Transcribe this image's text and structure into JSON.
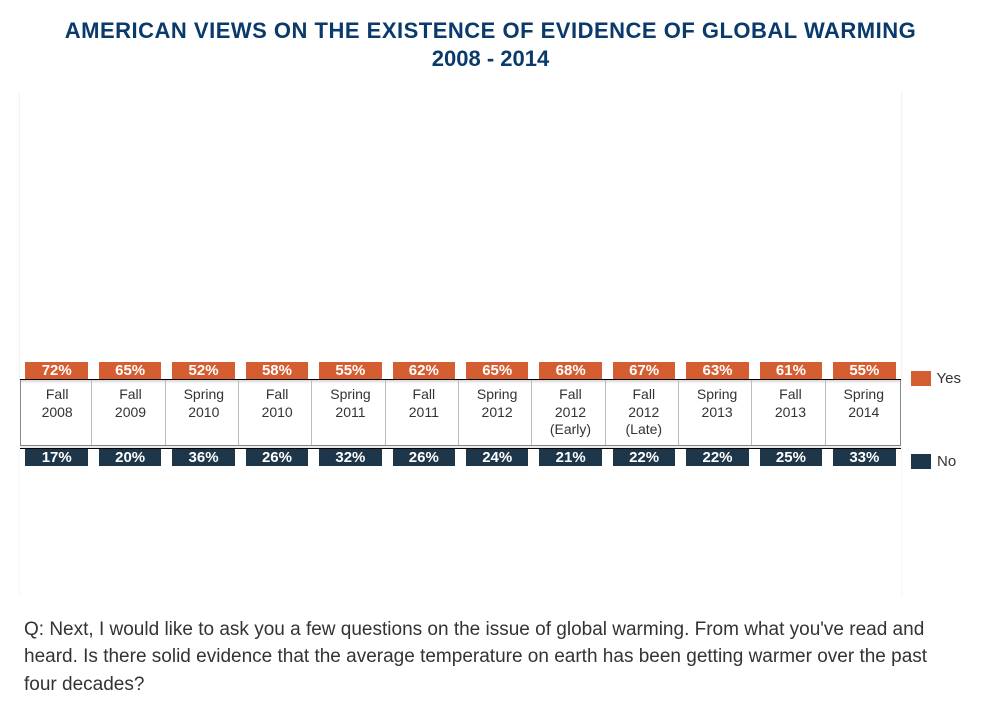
{
  "title_line1": "AMERICAN VIEWS ON THE EXISTENCE OF EVIDENCE OF GLOBAL WARMING",
  "title_line2": "2008 - 2014",
  "chart": {
    "type": "bar",
    "yes_color": "#d55d32",
    "no_color": "#1d3649",
    "text_color": "#ffffff",
    "axis_text_color": "#333333",
    "title_color": "#0a3a6b",
    "background_color": "#ffffff",
    "upper_max": 75,
    "lower_max": 40,
    "categories": [
      "Fall 2008",
      "Fall 2009",
      "Spring 2010",
      "Fall 2010",
      "Spring 2011",
      "Fall 2011",
      "Spring 2012",
      "Fall 2012 (Early)",
      "Fall 2012 (Late)",
      "Spring 2013",
      "Fall 2013",
      "Spring 2014"
    ],
    "yes_values": [
      72,
      65,
      52,
      58,
      55,
      62,
      65,
      68,
      67,
      63,
      61,
      55
    ],
    "no_values": [
      17,
      20,
      36,
      26,
      32,
      26,
      24,
      21,
      22,
      22,
      25,
      33
    ],
    "label_fontsize": 14,
    "value_fontsize": 15
  },
  "legend": {
    "yes": "Yes",
    "no": "No"
  },
  "question": "Q:  Next, I would like to ask you a few questions on the issue of global warming.  From what you've read and heard. Is there solid evidence that the average temperature on earth has been getting warmer over the past four decades?"
}
